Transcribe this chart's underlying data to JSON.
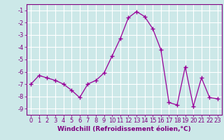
{
  "x": [
    0,
    1,
    2,
    3,
    4,
    5,
    6,
    7,
    8,
    9,
    10,
    11,
    12,
    13,
    14,
    15,
    16,
    17,
    18,
    19,
    20,
    21,
    22,
    23
  ],
  "y": [
    -7.0,
    -6.3,
    -6.5,
    -6.7,
    -7.0,
    -7.5,
    -8.1,
    -7.0,
    -6.7,
    -6.1,
    -4.7,
    -3.3,
    -1.6,
    -1.1,
    -1.5,
    -2.5,
    -4.2,
    -8.5,
    -8.7,
    -5.6,
    -8.8,
    -6.5,
    -8.1,
    -8.2
  ],
  "line_color": "#990099",
  "marker": "+",
  "marker_size": 4,
  "bg_color": "#cce8e8",
  "grid_color": "#ffffff",
  "xlabel": "Windchill (Refroidissement éolien,°C)",
  "ylabel": "",
  "xlim": [
    -0.5,
    23.5
  ],
  "ylim": [
    -9.5,
    -0.5
  ],
  "yticks": [
    -9,
    -8,
    -7,
    -6,
    -5,
    -4,
    -3,
    -2,
    -1
  ],
  "xtick_labels": [
    "0",
    "1",
    "2",
    "3",
    "4",
    "5",
    "6",
    "7",
    "8",
    "9",
    "10",
    "11",
    "12",
    "13",
    "14",
    "15",
    "16",
    "17",
    "18",
    "19",
    "20",
    "21",
    "22",
    "23"
  ],
  "tick_color": "#800080",
  "label_color": "#800080",
  "font_size_xlabel": 6.5,
  "font_size_ticks": 6
}
